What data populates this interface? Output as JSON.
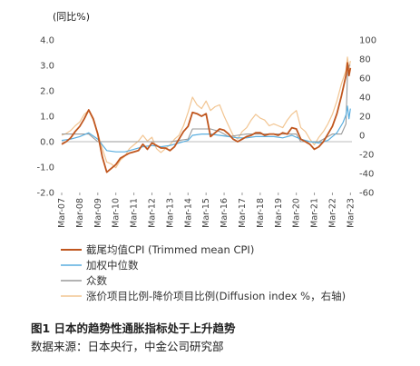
{
  "chart_data": {
    "type": "line",
    "unit_label": "(同比%)",
    "y_left": {
      "ticks": [
        "4.0",
        "3.0",
        "2.0",
        "1.0",
        "0.0",
        "-1.0",
        "-2.0"
      ],
      "range": [
        -2,
        4
      ]
    },
    "y_right": {
      "ticks": [
        "100",
        "80",
        "60",
        "40",
        "20",
        "0",
        "-20",
        "-40",
        "-60"
      ],
      "range": [
        -60,
        100
      ]
    },
    "x_ticks": [
      "Mar-07",
      "Mar-08",
      "Mar-09",
      "Mar-10",
      "Mar-11",
      "Mar-12",
      "Mar-13",
      "Mar-14",
      "Mar-15",
      "Mar-16",
      "Mar-17",
      "Mar-18",
      "Mar-19",
      "Mar-20",
      "Mar-21",
      "Mar-22",
      "Mar-23"
    ],
    "x_range": [
      "2007-03",
      "2023-04"
    ],
    "legend_placement": "bottom",
    "series": [
      {
        "name": "截尾均值CPI (Trimmed mean CPI)",
        "axis": "left",
        "color": "#c0561e",
        "points": [
          [
            "2007-03",
            -0.1
          ],
          [
            "2007-06",
            0.0
          ],
          [
            "2007-09",
            0.15
          ],
          [
            "2007-12",
            0.4
          ],
          [
            "2008-03",
            0.6
          ],
          [
            "2008-06",
            0.9
          ],
          [
            "2008-09",
            1.25
          ],
          [
            "2008-12",
            0.9
          ],
          [
            "2009-03",
            0.3
          ],
          [
            "2009-06",
            -0.6
          ],
          [
            "2009-09",
            -1.2
          ],
          [
            "2009-12",
            -1.05
          ],
          [
            "2010-03",
            -0.9
          ],
          [
            "2010-06",
            -0.65
          ],
          [
            "2010-09",
            -0.55
          ],
          [
            "2010-12",
            -0.45
          ],
          [
            "2011-03",
            -0.4
          ],
          [
            "2011-06",
            -0.35
          ],
          [
            "2011-09",
            -0.1
          ],
          [
            "2011-12",
            -0.3
          ],
          [
            "2012-03",
            -0.05
          ],
          [
            "2012-06",
            -0.15
          ],
          [
            "2012-09",
            -0.25
          ],
          [
            "2012-12",
            -0.25
          ],
          [
            "2013-03",
            -0.35
          ],
          [
            "2013-06",
            -0.2
          ],
          [
            "2013-09",
            0.1
          ],
          [
            "2013-12",
            0.4
          ],
          [
            "2014-03",
            0.6
          ],
          [
            "2014-06",
            1.15
          ],
          [
            "2014-09",
            1.1
          ],
          [
            "2014-12",
            1.0
          ],
          [
            "2015-03",
            1.1
          ],
          [
            "2015-06",
            0.2
          ],
          [
            "2015-09",
            0.35
          ],
          [
            "2015-12",
            0.5
          ],
          [
            "2016-03",
            0.45
          ],
          [
            "2016-06",
            0.3
          ],
          [
            "2016-09",
            0.1
          ],
          [
            "2016-12",
            0.0
          ],
          [
            "2017-03",
            0.1
          ],
          [
            "2017-06",
            0.2
          ],
          [
            "2017-09",
            0.25
          ],
          [
            "2017-12",
            0.35
          ],
          [
            "2018-03",
            0.35
          ],
          [
            "2018-06",
            0.25
          ],
          [
            "2018-09",
            0.3
          ],
          [
            "2018-12",
            0.3
          ],
          [
            "2019-03",
            0.25
          ],
          [
            "2019-06",
            0.35
          ],
          [
            "2019-09",
            0.3
          ],
          [
            "2019-12",
            0.55
          ],
          [
            "2020-03",
            0.5
          ],
          [
            "2020-06",
            0.1
          ],
          [
            "2020-09",
            0.0
          ],
          [
            "2020-12",
            -0.1
          ],
          [
            "2021-03",
            -0.3
          ],
          [
            "2021-06",
            -0.2
          ],
          [
            "2021-09",
            0.0
          ],
          [
            "2021-12",
            0.3
          ],
          [
            "2022-03",
            0.6
          ],
          [
            "2022-06",
            1.1
          ],
          [
            "2022-09",
            1.8
          ],
          [
            "2022-12",
            2.6
          ],
          [
            "2023-01",
            3.1
          ],
          [
            "2023-02",
            2.6
          ],
          [
            "2023-03",
            2.9
          ]
        ]
      },
      {
        "name": "加权中位数",
        "axis": "left",
        "color": "#5aaedf",
        "points": [
          [
            "2007-03",
            0.05
          ],
          [
            "2007-09",
            0.1
          ],
          [
            "2008-03",
            0.2
          ],
          [
            "2008-09",
            0.35
          ],
          [
            "2009-03",
            0.1
          ],
          [
            "2009-09",
            -0.35
          ],
          [
            "2010-03",
            -0.4
          ],
          [
            "2010-09",
            -0.4
          ],
          [
            "2011-03",
            -0.3
          ],
          [
            "2011-09",
            -0.2
          ],
          [
            "2012-03",
            -0.15
          ],
          [
            "2012-09",
            -0.2
          ],
          [
            "2013-03",
            -0.15
          ],
          [
            "2013-09",
            -0.05
          ],
          [
            "2014-03",
            0.05
          ],
          [
            "2014-06",
            0.25
          ],
          [
            "2014-12",
            0.3
          ],
          [
            "2015-06",
            0.3
          ],
          [
            "2015-12",
            0.25
          ],
          [
            "2016-06",
            0.2
          ],
          [
            "2016-12",
            0.15
          ],
          [
            "2017-06",
            0.15
          ],
          [
            "2017-12",
            0.2
          ],
          [
            "2018-06",
            0.2
          ],
          [
            "2018-12",
            0.2
          ],
          [
            "2019-06",
            0.15
          ],
          [
            "2019-12",
            0.25
          ],
          [
            "2020-06",
            0.1
          ],
          [
            "2020-12",
            0.0
          ],
          [
            "2021-06",
            -0.05
          ],
          [
            "2021-12",
            0.05
          ],
          [
            "2022-06",
            0.35
          ],
          [
            "2022-10",
            0.75
          ],
          [
            "2022-12",
            1.05
          ],
          [
            "2023-01",
            1.4
          ],
          [
            "2023-02",
            0.9
          ],
          [
            "2023-03",
            1.3
          ]
        ]
      },
      {
        "name": "众数",
        "axis": "left",
        "color": "#9a9a9a",
        "points": [
          [
            "2007-03",
            0.3
          ],
          [
            "2007-09",
            0.3
          ],
          [
            "2008-03",
            0.3
          ],
          [
            "2008-09",
            0.3
          ],
          [
            "2009-03",
            0.0
          ],
          [
            "2010-03",
            0.0
          ],
          [
            "2011-03",
            0.0
          ],
          [
            "2012-03",
            0.0
          ],
          [
            "2013-03",
            0.0
          ],
          [
            "2014-03",
            0.1
          ],
          [
            "2014-06",
            0.5
          ],
          [
            "2015-06",
            0.5
          ],
          [
            "2015-12",
            0.4
          ],
          [
            "2016-06",
            0.2
          ],
          [
            "2017-06",
            0.3
          ],
          [
            "2018-06",
            0.3
          ],
          [
            "2019-06",
            0.3
          ],
          [
            "2020-03",
            0.3
          ],
          [
            "2020-06",
            0.0
          ],
          [
            "2021-06",
            0.0
          ],
          [
            "2022-03",
            0.3
          ],
          [
            "2022-09",
            0.3
          ],
          [
            "2022-12",
            0.7
          ],
          [
            "2023-01",
            2.6
          ],
          [
            "2023-02",
            3.0
          ],
          [
            "2023-03",
            3.0
          ]
        ]
      },
      {
        "name": "涨价项目比例-降价项目比例(Diffusion index %，右轴)",
        "axis": "right",
        "color": "#f2c592",
        "points": [
          [
            "2007-03",
            0
          ],
          [
            "2007-06",
            2
          ],
          [
            "2007-09",
            5
          ],
          [
            "2007-12",
            10
          ],
          [
            "2008-03",
            14
          ],
          [
            "2008-06",
            22
          ],
          [
            "2008-09",
            26
          ],
          [
            "2008-12",
            16
          ],
          [
            "2009-03",
            2
          ],
          [
            "2009-06",
            -14
          ],
          [
            "2009-09",
            -28
          ],
          [
            "2009-12",
            -30
          ],
          [
            "2010-03",
            -34
          ],
          [
            "2010-06",
            -26
          ],
          [
            "2010-09",
            -22
          ],
          [
            "2010-12",
            -14
          ],
          [
            "2011-03",
            -10
          ],
          [
            "2011-06",
            -6
          ],
          [
            "2011-09",
            0
          ],
          [
            "2011-12",
            -6
          ],
          [
            "2012-03",
            -2
          ],
          [
            "2012-06",
            -14
          ],
          [
            "2012-09",
            -18
          ],
          [
            "2012-12",
            -14
          ],
          [
            "2013-03",
            -10
          ],
          [
            "2013-06",
            -4
          ],
          [
            "2013-09",
            0
          ],
          [
            "2013-12",
            10
          ],
          [
            "2014-03",
            24
          ],
          [
            "2014-06",
            40
          ],
          [
            "2014-09",
            32
          ],
          [
            "2014-12",
            28
          ],
          [
            "2015-03",
            36
          ],
          [
            "2015-06",
            26
          ],
          [
            "2015-09",
            30
          ],
          [
            "2015-12",
            32
          ],
          [
            "2016-03",
            20
          ],
          [
            "2016-06",
            10
          ],
          [
            "2016-09",
            0
          ],
          [
            "2016-12",
            -4
          ],
          [
            "2017-03",
            4
          ],
          [
            "2017-06",
            8
          ],
          [
            "2017-09",
            16
          ],
          [
            "2017-12",
            22
          ],
          [
            "2018-03",
            18
          ],
          [
            "2018-06",
            16
          ],
          [
            "2018-09",
            10
          ],
          [
            "2018-12",
            12
          ],
          [
            "2019-03",
            10
          ],
          [
            "2019-06",
            8
          ],
          [
            "2019-09",
            16
          ],
          [
            "2019-12",
            22
          ],
          [
            "2020-03",
            26
          ],
          [
            "2020-06",
            8
          ],
          [
            "2020-09",
            4
          ],
          [
            "2020-12",
            -4
          ],
          [
            "2021-03",
            -10
          ],
          [
            "2021-06",
            -2
          ],
          [
            "2021-09",
            4
          ],
          [
            "2021-12",
            12
          ],
          [
            "2022-03",
            22
          ],
          [
            "2022-06",
            36
          ],
          [
            "2022-09",
            54
          ],
          [
            "2022-12",
            68
          ],
          [
            "2023-01",
            82
          ],
          [
            "2023-02",
            70
          ],
          [
            "2023-03",
            78
          ]
        ]
      }
    ]
  },
  "caption": {
    "title": "图1   日本的趋势性通胀指标处于上升趋势",
    "source": "数据来源：日本央行，中金公司研究部"
  }
}
